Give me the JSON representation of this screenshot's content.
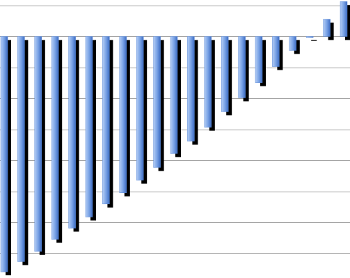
{
  "chart_data": {
    "type": "bar",
    "categories": [
      null,
      null,
      null,
      null,
      null,
      null,
      null,
      null,
      null,
      null,
      null,
      null,
      null,
      null,
      null,
      null,
      null,
      null,
      null,
      null,
      null
    ],
    "values": [
      -7.6,
      -7.27,
      -6.94,
      -6.55,
      -6.19,
      -5.83,
      -5.41,
      -5.05,
      -4.64,
      -4.23,
      -3.78,
      -3.38,
      -2.93,
      -2.43,
      -1.98,
      -1.49,
      -0.97,
      -0.45,
      -0.03,
      0.56,
      1.13
    ],
    "color": "#5b8ad8",
    "ylim": [
      -7.8,
      1.18
    ],
    "yticks": [
      -7,
      -6,
      -5,
      -4,
      -3,
      -2,
      -1,
      0,
      1
    ],
    "grid": true
  }
}
